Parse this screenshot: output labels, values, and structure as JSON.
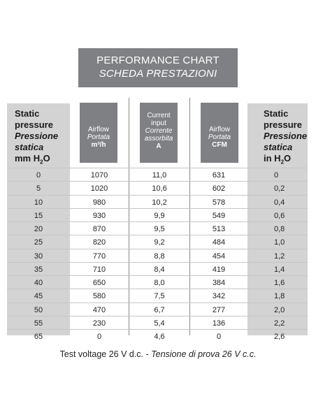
{
  "title": {
    "line1": "PERFORMANCE CHART",
    "line2": "SCHEDA PRESTAZIONI"
  },
  "headers": {
    "pressure_mm": {
      "l1": "Static",
      "l2": "pressure",
      "l3": "Pressione",
      "l4": "statica",
      "unit_pre": "mm H",
      "unit_sub": "2",
      "unit_post": "O"
    },
    "airflow_m3h": {
      "l1": "Airflow",
      "l2": "Portata",
      "unit": "m³/h"
    },
    "current": {
      "l1": "Current",
      "l2": "input",
      "l3": "Corrente",
      "l4": "assorbita",
      "unit": "A"
    },
    "airflow_cfm": {
      "l1": "Airflow",
      "l2": "Portata",
      "unit": "CFM"
    },
    "pressure_in": {
      "l1": "Static",
      "l2": "pressure",
      "l3": "Pressione",
      "l4": "statica",
      "unit_pre": "in H",
      "unit_sub": "2",
      "unit_post": "O"
    }
  },
  "rows": [
    [
      "0",
      "1070",
      "11,0",
      "631",
      "0"
    ],
    [
      "5",
      "1020",
      "10,6",
      "602",
      "0,2"
    ],
    [
      "10",
      "980",
      "10,2",
      "578",
      "0,4"
    ],
    [
      "15",
      "930",
      "9,9",
      "549",
      "0,6"
    ],
    [
      "20",
      "870",
      "9,5",
      "513",
      "0,8"
    ],
    [
      "25",
      "820",
      "9,2",
      "484",
      "1,0"
    ],
    [
      "30",
      "770",
      "8,8",
      "454",
      "1,2"
    ],
    [
      "35",
      "710",
      "8,4",
      "419",
      "1,4"
    ],
    [
      "40",
      "650",
      "8,0",
      "384",
      "1,6"
    ],
    [
      "45",
      "580",
      "7,5",
      "342",
      "1,8"
    ],
    [
      "50",
      "470",
      "6,7",
      "277",
      "2,0"
    ],
    [
      "55",
      "230",
      "5,4",
      "136",
      "2,2"
    ],
    [
      "65",
      "0",
      "4,6",
      "0",
      "2,6"
    ]
  ],
  "footer": {
    "text": "Test voltage 26 V d.c. - ",
    "italic": "Tensione di prova 26 V c.c."
  }
}
